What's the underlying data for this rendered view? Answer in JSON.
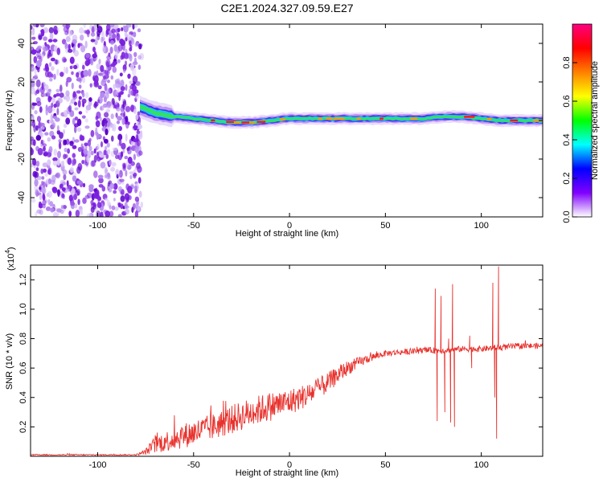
{
  "figure": {
    "title": "C2E1.2024.327.09.59.E27"
  },
  "chart_data": [
    {
      "type": "heatmap",
      "xlabel": "Height of straight line (km)",
      "ylabel": "Frequency (Hz)",
      "xlim": [
        -135,
        132
      ],
      "ylim": [
        -50,
        50
      ],
      "xticks": [
        -100,
        -50,
        0,
        50,
        100
      ],
      "yticks": [
        -40,
        -20,
        0,
        20,
        40
      ],
      "colorbar": {
        "label": "Normalized spectral amplitude",
        "range": [
          0,
          1
        ],
        "ticks": [
          "0.0",
          "0.2",
          "0.4",
          "0.6",
          "0.8"
        ],
        "colors": [
          "#ffffff",
          "#8000ff",
          "#0000ff",
          "#00ffff",
          "#00ff00",
          "#ffff00",
          "#ff8000",
          "#ff0000",
          "#ff0080"
        ]
      },
      "noise_region": {
        "x": [
          -135,
          -77
        ],
        "freq": [
          -50,
          50
        ]
      },
      "ridge": {
        "x": [
          -78,
          -70,
          -60,
          -50,
          -40,
          -30,
          -20,
          -10,
          0,
          20,
          40,
          60,
          70,
          80,
          90,
          100,
          110,
          132
        ],
        "freq": [
          7,
          4,
          2,
          1,
          0,
          -1,
          -1,
          0,
          1,
          1,
          1,
          1,
          1,
          2,
          2,
          1,
          0,
          0
        ]
      }
    },
    {
      "type": "line",
      "xlabel": "Height of straight line (km)",
      "ylabel": "SNR (10 * v/v)",
      "y_multiplier": "(x10",
      "y_exponent": "4",
      "xlim": [
        -135,
        132
      ],
      "ylim": [
        0,
        1.3
      ],
      "xticks": [
        -100,
        -50,
        0,
        50,
        100
      ],
      "yticks": [
        0.2,
        0.4,
        0.6,
        0.8,
        1.0,
        1.2
      ],
      "series": [
        {
          "color": "#e8322d",
          "x": [
            -135,
            -80,
            -75,
            -70,
            -60,
            -50,
            -40,
            -30,
            -20,
            -10,
            0,
            10,
            20,
            30,
            40,
            50,
            60,
            70,
            80,
            90,
            100,
            110,
            120,
            132
          ],
          "y": [
            0.01,
            0.01,
            0.03,
            0.08,
            0.12,
            0.16,
            0.2,
            0.25,
            0.3,
            0.34,
            0.37,
            0.42,
            0.5,
            0.6,
            0.66,
            0.7,
            0.71,
            0.72,
            0.72,
            0.73,
            0.73,
            0.74,
            0.75,
            0.75
          ],
          "noise": [
            0.004,
            0.004,
            0.02,
            0.06,
            0.08,
            0.09,
            0.09,
            0.1,
            0.1,
            0.1,
            0.09,
            0.08,
            0.07,
            0.05,
            0.03,
            0.02,
            0.02,
            0.02,
            0.02,
            0.02,
            0.02,
            0.02,
            0.02,
            0.02
          ],
          "spikes": [
            [
              76,
              1.14
            ],
            [
              77,
              0.24
            ],
            [
              79,
              1.09
            ],
            [
              81,
              0.3
            ],
            [
              83,
              0.8
            ],
            [
              84,
              0.23
            ],
            [
              85,
              1.17
            ],
            [
              86,
              0.2
            ],
            [
              94,
              0.82
            ],
            [
              95,
              0.6
            ],
            [
              106,
              1.18
            ],
            [
              107,
              0.4
            ],
            [
              108,
              0.12
            ],
            [
              109,
              1.29
            ]
          ]
        }
      ]
    }
  ]
}
